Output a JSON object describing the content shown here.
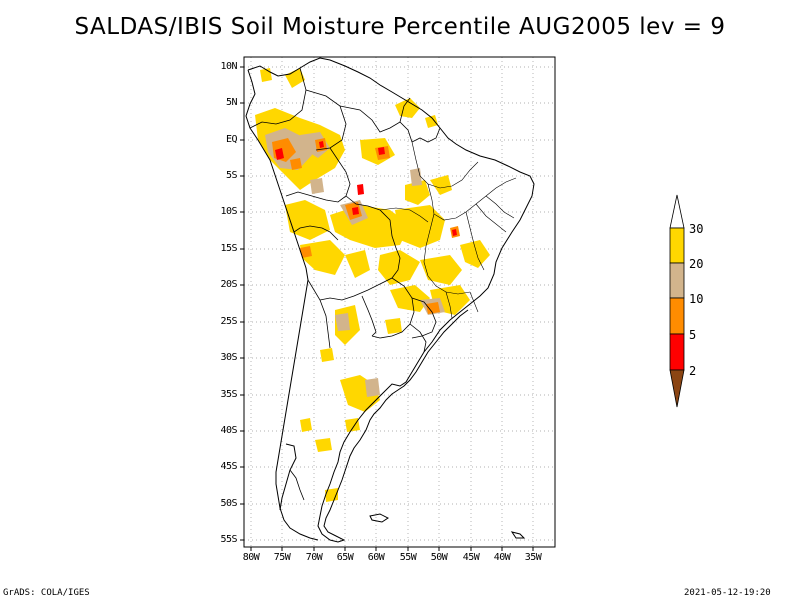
{
  "title": "SALDAS/IBIS Soil Moisture Percentile AUG2005 lev = 9",
  "map": {
    "y_ticks": [
      "10N",
      "5N",
      "EQ",
      "5S",
      "10S",
      "15S",
      "20S",
      "25S",
      "30S",
      "35S",
      "40S",
      "45S",
      "50S",
      "55S"
    ],
    "x_ticks": [
      "80W",
      "75W",
      "70W",
      "65W",
      "60W",
      "55W",
      "50W",
      "45W",
      "40W",
      "35W"
    ],
    "lon_range": [
      -81,
      -32
    ],
    "lat_range": [
      -56,
      12
    ]
  },
  "legend": {
    "labels": [
      "30",
      "20",
      "10",
      "5",
      "2"
    ],
    "colors": {
      "above_30": "#ffffff",
      "20_30": "#ffd700",
      "10_20": "#d2b48c",
      "5_10": "#ff8c00",
      "2_5": "#ff0000",
      "below_2": "#8b4513"
    }
  },
  "footer": {
    "left": "GrADS: COLA/IGES",
    "right": "2021-05-12-19:20"
  }
}
